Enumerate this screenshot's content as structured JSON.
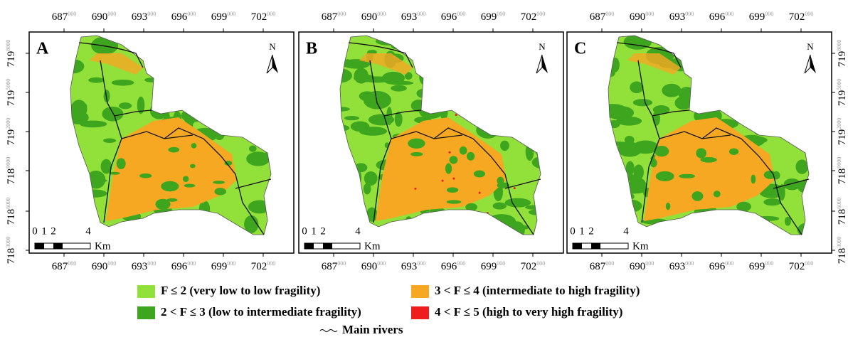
{
  "panels": [
    {
      "letter": "A"
    },
    {
      "letter": "B"
    },
    {
      "letter": "C"
    }
  ],
  "north": "N",
  "x_ticks": [
    {
      "main": "687",
      "sup": "000"
    },
    {
      "main": "690",
      "sup": "000"
    },
    {
      "main": "693",
      "sup": "000"
    },
    {
      "main": "696",
      "sup": "000"
    },
    {
      "main": "699",
      "sup": "000"
    },
    {
      "main": "702",
      "sup": "000"
    }
  ],
  "y_ticks": [
    {
      "main": "719",
      "sup": "8000"
    },
    {
      "main": "719",
      "sup": "5000"
    },
    {
      "main": "719",
      "sup": "2000"
    },
    {
      "main": "718",
      "sup": "9000"
    },
    {
      "main": "718",
      "sup": "6000"
    },
    {
      "main": "718",
      "sup": "3000"
    }
  ],
  "scale": {
    "ticks": [
      "0",
      "1",
      "2",
      "4"
    ],
    "unit": "Km"
  },
  "legend": {
    "items": [
      {
        "label": "F ≤ 2 (very low to low fragility)",
        "color": "#92e03a"
      },
      {
        "label": "2 < F ≤ 3 (low to intermediate fragility)",
        "color": "#3ea51e"
      },
      {
        "label": "3 < F ≤ 4 (intermediate to high fragility)",
        "color": "#f7a823"
      },
      {
        "label": "4 < F ≤ 5 (high to very high fragility)",
        "color": "#ee1c1c"
      }
    ],
    "rivers": "Main rivers"
  }
}
